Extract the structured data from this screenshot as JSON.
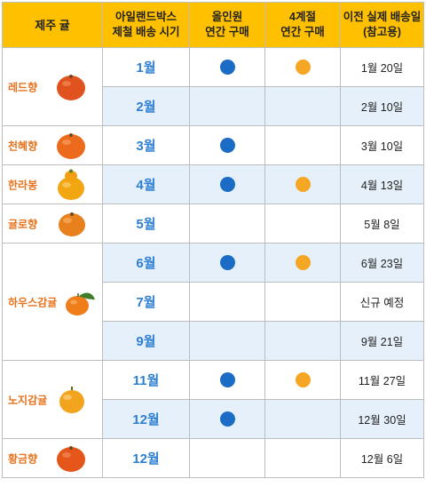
{
  "header": {
    "col1": "제주 귤",
    "col2_line1": "아일랜드박스",
    "col2_line2": "제철 배송 시기",
    "col3_line1": "올인원",
    "col3_line2": "연간 구매",
    "col4_line1": "4계절",
    "col4_line2": "연간 구매",
    "col5_line1": "이전 실제 배송일",
    "col5_line2": "(참고용)"
  },
  "colors": {
    "allinone_dot": "#1a6cc4",
    "four_season_dot": "#f5a623",
    "header_bg": "#ffc000",
    "month_text": "#2f7fd1",
    "product_text": "#e8731e"
  },
  "products": [
    {
      "name": "레드향",
      "icon": "orange-fruit-icon"
    },
    {
      "name": "천혜향",
      "icon": "orange-fruit-icon"
    },
    {
      "name": "한라봉",
      "icon": "hallabong-fruit-icon"
    },
    {
      "name": "귤로향",
      "icon": "orange-fruit-icon"
    },
    {
      "name": "하우스감귤",
      "icon": "tangerine-with-leaf-icon"
    },
    {
      "name": "노지감귤",
      "icon": "tangerine-icon"
    },
    {
      "name": "황금향",
      "icon": "orange-fruit-icon"
    }
  ],
  "rows": [
    {
      "month": "1월",
      "allinone": true,
      "four_season": true,
      "date": "1월 20일"
    },
    {
      "month": "2월",
      "allinone": false,
      "four_season": false,
      "date": "2월 10일"
    },
    {
      "month": "3월",
      "allinone": true,
      "four_season": false,
      "date": "3월 10일"
    },
    {
      "month": "4월",
      "allinone": true,
      "four_season": true,
      "date": "4월 13일"
    },
    {
      "month": "5월",
      "allinone": false,
      "four_season": false,
      "date": "5월 8일"
    },
    {
      "month": "6월",
      "allinone": true,
      "four_season": true,
      "date": "6월 23일"
    },
    {
      "month": "7월",
      "allinone": false,
      "four_season": false,
      "date": "신규 예정"
    },
    {
      "month": "9월",
      "allinone": false,
      "four_season": false,
      "date": "9월 21일"
    },
    {
      "month": "11월",
      "allinone": true,
      "four_season": true,
      "date": "11월 27일"
    },
    {
      "month": "12월",
      "allinone": true,
      "four_season": false,
      "date": "12월 30일"
    },
    {
      "month": "12월",
      "allinone": false,
      "four_season": false,
      "date": "12월 6일"
    }
  ]
}
